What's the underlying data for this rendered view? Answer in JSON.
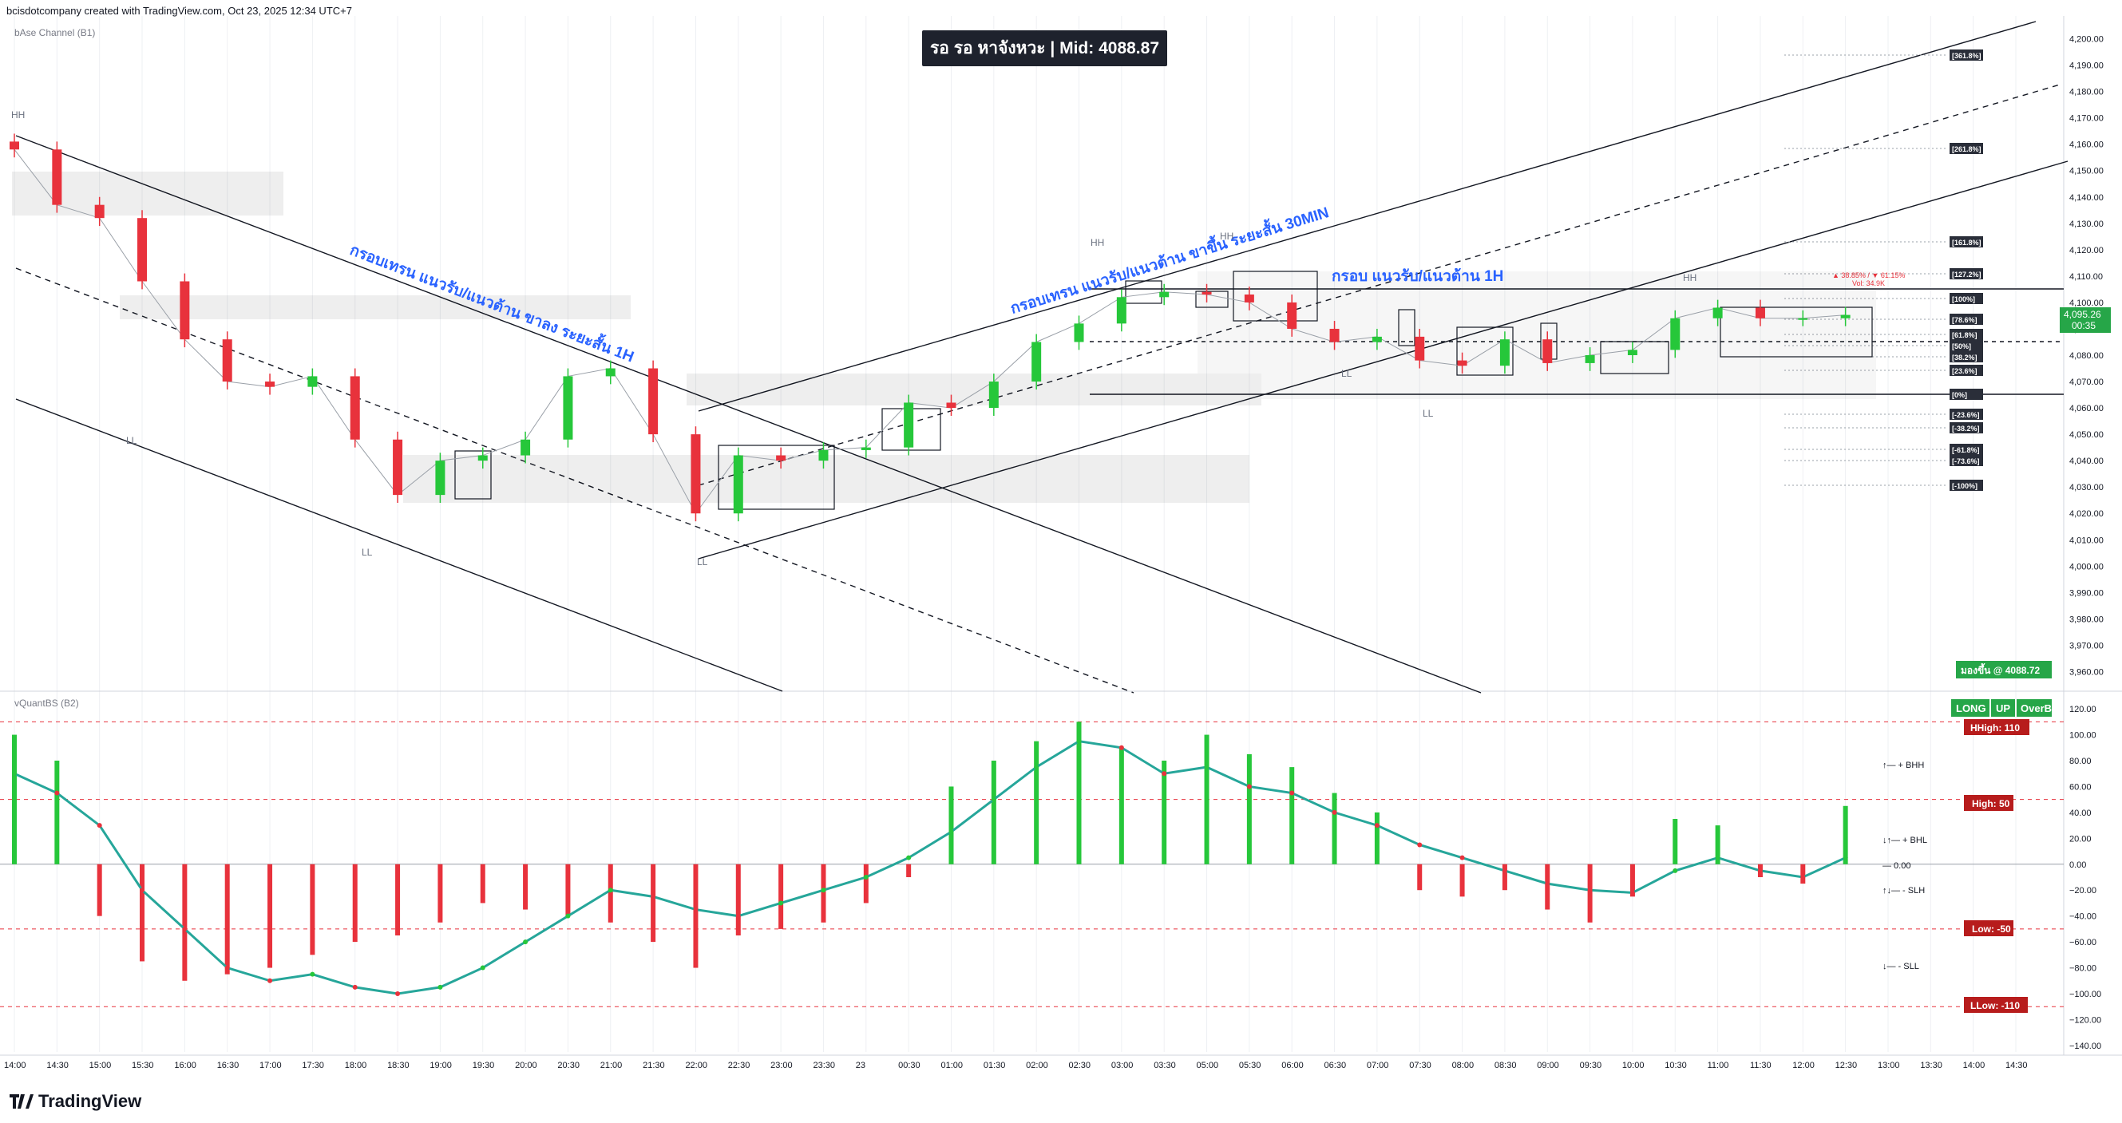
{
  "header": {
    "credit": "bcisdotcompany created with TradingView.com, Oct 23, 2025 12:34 UTC+7",
    "top_badge": "รอ รอ หาจังหวะ | Mid: 4088.87",
    "brand": "TradingView"
  },
  "colors": {
    "bull": "#26c73a",
    "bear": "#e8323c",
    "accent": "#1e222d",
    "link": "#2962ff",
    "grid": "#eef0f3"
  },
  "main_pane": {
    "indicator_label": "bAse Channel (B1)",
    "price_axis": [
      "4,200.00",
      "4,190.00",
      "4,180.00",
      "4,170.00",
      "4,160.00",
      "4,150.00",
      "4,140.00",
      "4,130.00",
      "4,120.00",
      "4,110.00",
      "4,100.00",
      "4,090.00",
      "4,080.00",
      "4,070.00",
      "4,060.00",
      "4,050.00",
      "4,040.00",
      "4,030.00",
      "4,020.00",
      "4,010.00",
      "4,000.00",
      "3,990.00",
      "3,980.00",
      "3,970.00",
      "3,960.00"
    ],
    "annotations": [
      "กรอบเทรน แนวรับ/แนวต้าน ขาลง ระยะสั้น 1H",
      "กรอบเทรน แนวรับ/แนวต้าน ขาขึ้น ระยะสั้น 30MIN",
      "กรอบ แนวรับ/แนวต้าน 1H"
    ],
    "swing_labels": [
      "HH",
      "LL",
      "LL",
      "LL",
      "HH",
      "HH",
      "LL",
      "LL",
      "HH"
    ],
    "fib_levels": [
      "[361.8%]",
      "[261.8%]",
      "[161.8%]",
      "[127.2%]",
      "[100%]",
      "[78.6%]",
      "[61.8%]",
      "[50%]",
      "[38.2%]",
      "[23.6%]",
      "[0%]",
      "[-23.6%]",
      "[-38.2%]",
      "[-61.8%]",
      "[-73.6%]",
      "[-100%]"
    ],
    "stats_line_1": "▲ 38.85% / ▼ 61.15%",
    "stats_line_2": "Vol: 34.9K",
    "last_price": "4,095.26",
    "countdown": "00:35",
    "signal_badge": "มองขึ้น @ 4088.72"
  },
  "sub_pane": {
    "indicator_label": "vQuantBS (B2)",
    "axis": [
      "120.00",
      "100.00",
      "80.00",
      "60.00",
      "40.00",
      "20.00",
      "0.00",
      "−20.00",
      "−40.00",
      "−60.00",
      "−80.00",
      "−100.00",
      "−120.00",
      "−140.00"
    ],
    "status_badges": [
      "LONG",
      "UP",
      "OverB"
    ],
    "levels": [
      {
        "label": "HHigh: 110",
        "value": 110
      },
      {
        "label": "High: 50",
        "value": 50
      },
      {
        "label": "Low: -50",
        "value": -50
      },
      {
        "label": "LLow: -110",
        "value": -110
      }
    ],
    "markers": [
      "↑— + BHH",
      "↓↑— + BHL",
      "— 0.00",
      "↑↓— - SLH",
      "↓— - SLL"
    ]
  },
  "time_axis": [
    "14:00",
    "14:30",
    "15:00",
    "15:30",
    "16:00",
    "16:30",
    "17:00",
    "17:30",
    "18:00",
    "18:30",
    "19:00",
    "19:30",
    "20:00",
    "20:30",
    "21:00",
    "21:30",
    "22:00",
    "22:30",
    "23:00",
    "23:30",
    "23",
    "00:30",
    "01:00",
    "01:30",
    "02:00",
    "02:30",
    "03:00",
    "03:30",
    "05:00",
    "05:30",
    "06:00",
    "06:30",
    "07:00",
    "07:30",
    "08:00",
    "08:30",
    "09:00",
    "09:30",
    "10:00",
    "10:30",
    "11:00",
    "11:30",
    "12:00",
    "12:30",
    "13:00",
    "13:30",
    "14:00",
    "14:30"
  ],
  "chart_data": [
    {
      "type": "line",
      "title": "",
      "xlabel": "",
      "ylabel": "",
      "ylim": [
        3955,
        4205
      ],
      "grid": true,
      "x": [
        "14:00",
        "14:30",
        "15:00",
        "15:30",
        "16:00",
        "16:30",
        "17:00",
        "17:30",
        "18:00",
        "18:30",
        "19:00",
        "19:30",
        "20:00",
        "20:30",
        "21:00",
        "21:30",
        "22:00",
        "22:30",
        "23:00",
        "23:30",
        "23",
        "00:30",
        "01:00",
        "01:30",
        "02:00",
        "02:30",
        "03:00",
        "03:30",
        "05:00",
        "05:30",
        "06:00",
        "06:30",
        "07:00",
        "07:30",
        "08:00",
        "08:30",
        "09:00",
        "09:30",
        "10:00",
        "10:30",
        "11:00",
        "11:30",
        "12:00",
        "12:30"
      ],
      "series": [
        {
          "values": [
            4158,
            4137,
            4132,
            4108,
            4086,
            4070,
            4068,
            4072,
            4048,
            4027,
            4040,
            4042,
            4048,
            4072,
            4075,
            4050,
            4020,
            4042,
            4040,
            4044,
            4045,
            4062,
            4060,
            4070,
            4085,
            4092,
            4102,
            4104,
            4103,
            4100,
            4090,
            4085,
            4087,
            4078,
            4076,
            4086,
            4077,
            4080,
            4082,
            4094,
            4098,
            4094,
            4094,
            4095.26
          ]
        }
      ]
    },
    {
      "type": "bar",
      "title": "",
      "xlabel": "",
      "ylabel": "",
      "ylim": [
        -145,
        125
      ],
      "grid": true,
      "x": [
        "14:00",
        "14:30",
        "15:00",
        "15:30",
        "16:00",
        "16:30",
        "17:00",
        "17:30",
        "18:00",
        "18:30",
        "19:00",
        "19:30",
        "20:00",
        "20:30",
        "21:00",
        "21:30",
        "22:00",
        "22:30",
        "23:00",
        "23:30",
        "23",
        "00:30",
        "01:00",
        "01:30",
        "02:00",
        "02:30",
        "03:00",
        "03:30",
        "05:00",
        "05:30",
        "06:00",
        "06:30",
        "07:00",
        "07:30",
        "08:00",
        "08:30",
        "09:00",
        "09:30",
        "10:00",
        "10:30",
        "11:00",
        "11:30",
        "12:00",
        "12:30"
      ],
      "series": [
        {
          "values": [
            100,
            80,
            -40,
            -75,
            -90,
            -85,
            -80,
            -70,
            -60,
            -55,
            -45,
            -30,
            -35,
            -40,
            -45,
            -60,
            -80,
            -55,
            -50,
            -45,
            -30,
            -10,
            60,
            80,
            95,
            110,
            90,
            80,
            100,
            85,
            75,
            55,
            40,
            -20,
            -25,
            -20,
            -35,
            -45,
            -25,
            35,
            30,
            -10,
            -15,
            45
          ]
        },
        {
          "values": [
            70,
            55,
            30,
            -20,
            -50,
            -80,
            -90,
            -85,
            -95,
            -100,
            -95,
            -80,
            -60,
            -40,
            -20,
            -25,
            -35,
            -40,
            -30,
            -20,
            -10,
            5,
            25,
            50,
            75,
            95,
            90,
            70,
            75,
            60,
            55,
            40,
            30,
            15,
            5,
            -5,
            -15,
            -20,
            -22,
            -5,
            5,
            -5,
            -10,
            5
          ]
        }
      ]
    }
  ]
}
